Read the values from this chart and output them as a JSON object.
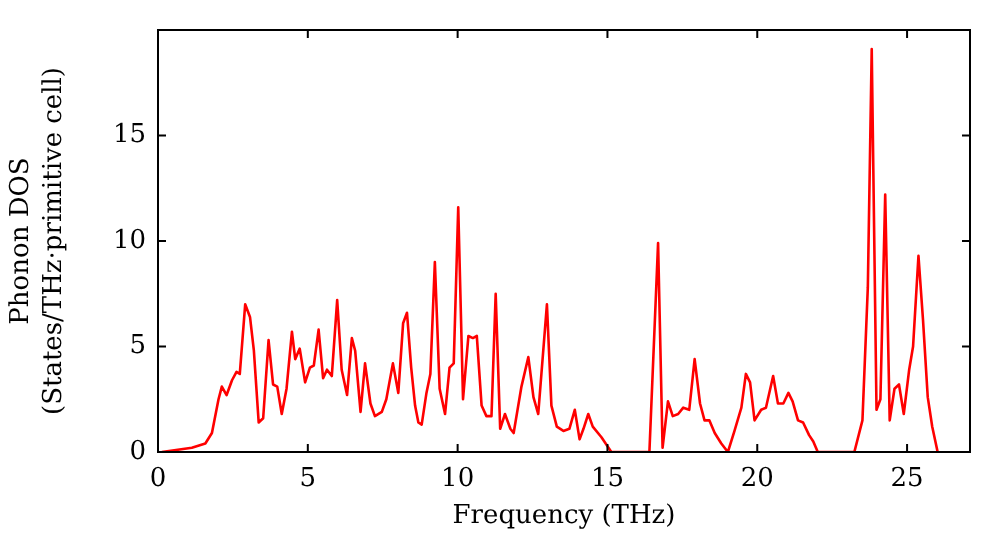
{
  "chart_data": {
    "type": "line",
    "xlabel": "Frequency (THz)",
    "ylabel": "Phonon DOS\n(States/THz·primitive cell)",
    "xlim": [
      0,
      27.1
    ],
    "ylim": [
      0,
      20
    ],
    "xticks": [
      0,
      5,
      10,
      15,
      20,
      25
    ],
    "yticks": [
      0,
      5,
      10,
      15
    ],
    "grid": false,
    "legend": false,
    "marker": "none",
    "line_style": "solid",
    "series": [
      {
        "color": "#ff0000",
        "x": [
          0.13,
          1.13,
          1.58,
          1.8,
          2.02,
          2.13,
          2.29,
          2.47,
          2.62,
          2.73,
          2.91,
          3.07,
          3.2,
          3.36,
          3.51,
          3.69,
          3.84,
          3.98,
          4.13,
          4.29,
          4.47,
          4.58,
          4.73,
          4.91,
          5.07,
          5.2,
          5.36,
          5.51,
          5.64,
          5.8,
          5.98,
          6.13,
          6.31,
          6.47,
          6.58,
          6.76,
          6.91,
          7.09,
          7.24,
          7.47,
          7.62,
          7.84,
          8.02,
          8.18,
          8.31,
          8.45,
          8.58,
          8.69,
          8.8,
          8.96,
          9.09,
          9.24,
          9.4,
          9.58,
          9.73,
          9.87,
          10.02,
          10.18,
          10.36,
          10.51,
          10.64,
          10.8,
          10.96,
          11.13,
          11.27,
          11.42,
          11.58,
          11.76,
          11.87,
          12.13,
          12.36,
          12.53,
          12.69,
          12.98,
          13.13,
          13.31,
          13.53,
          13.73,
          13.91,
          14.07,
          14.2,
          14.36,
          14.51,
          14.8,
          15.13,
          16.4,
          16.69,
          16.84,
          17.02,
          17.18,
          17.36,
          17.53,
          17.73,
          17.91,
          18.09,
          18.24,
          18.4,
          18.58,
          18.8,
          19.02,
          19.24,
          19.47,
          19.62,
          19.76,
          19.91,
          20.13,
          20.29,
          20.53,
          20.69,
          20.87,
          21.04,
          21.18,
          21.36,
          21.53,
          21.73,
          21.87,
          22.02,
          23.24,
          23.51,
          23.69,
          23.82,
          23.98,
          24.11,
          24.27,
          24.42,
          24.58,
          24.73,
          24.89,
          25.07,
          25.2,
          25.38,
          25.53,
          25.69,
          25.84,
          26.02
        ],
        "values": [
          0,
          0.2,
          0.4,
          0.9,
          2.5,
          3.1,
          2.7,
          3.4,
          3.8,
          3.7,
          7.0,
          6.4,
          4.8,
          1.4,
          1.6,
          5.3,
          3.2,
          3.1,
          1.8,
          3.0,
          5.7,
          4.4,
          4.9,
          3.3,
          4.0,
          4.1,
          5.8,
          3.5,
          3.9,
          3.6,
          7.2,
          3.9,
          2.7,
          5.4,
          4.8,
          1.9,
          4.2,
          2.3,
          1.7,
          1.9,
          2.5,
          4.2,
          2.8,
          6.1,
          6.6,
          4.0,
          2.2,
          1.4,
          1.3,
          2.8,
          3.7,
          9.0,
          3.0,
          1.8,
          4.0,
          4.2,
          11.6,
          2.5,
          5.5,
          5.4,
          5.5,
          2.2,
          1.7,
          1.7,
          7.5,
          1.1,
          1.8,
          1.1,
          0.9,
          3.1,
          4.5,
          2.6,
          1.8,
          7.0,
          2.2,
          1.2,
          1.0,
          1.1,
          2.0,
          0.6,
          1.1,
          1.8,
          1.2,
          0.7,
          0,
          0,
          9.9,
          0.2,
          2.4,
          1.7,
          1.8,
          2.1,
          2.0,
          4.4,
          2.3,
          1.5,
          1.5,
          0.9,
          0.4,
          0,
          1.0,
          2.1,
          3.7,
          3.3,
          1.5,
          2.0,
          2.1,
          3.6,
          2.3,
          2.3,
          2.8,
          2.4,
          1.5,
          1.4,
          0.8,
          0.5,
          0,
          0,
          1.5,
          7.8,
          19.1,
          2.0,
          2.5,
          12.2,
          1.5,
          3.0,
          3.2,
          1.8,
          3.9,
          5.0,
          9.3,
          6.3,
          2.6,
          1.2,
          0
        ]
      }
    ]
  }
}
